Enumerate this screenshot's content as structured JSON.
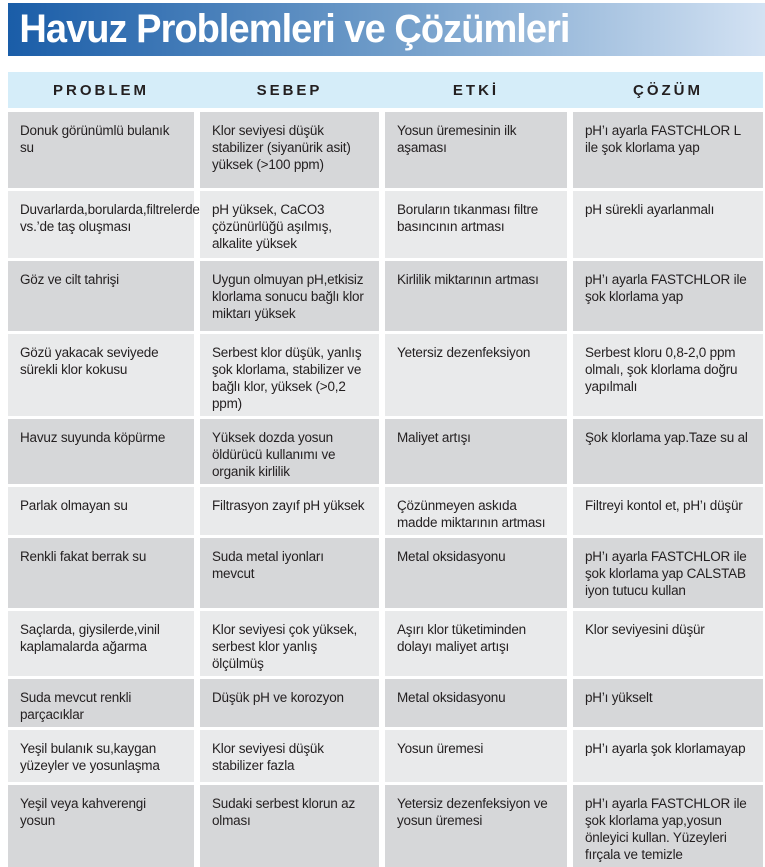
{
  "banner": {
    "title": "Havuz Problemleri ve Çözümleri"
  },
  "colors": {
    "banner_gradient_from": "#1a5da8",
    "banner_gradient_mid": "#6f9cc9",
    "banner_gradient_to": "#d3e2f3",
    "header_bg": "#d5edf9",
    "row_bg_dark": "#d6d7d9",
    "row_bg_light": "#e9eaeb",
    "title_color": "#ffffff",
    "text_color": "#231f20"
  },
  "table": {
    "headers": [
      "PROBLEM",
      "SEBEP",
      "ETKİ",
      "ÇÖZÜM"
    ],
    "rows": [
      {
        "problem": "Donuk görünümlü bulanık su",
        "sebep": "Klor seviyesi düşük stabilizer (siyanürik asit) yüksek (>100 ppm)",
        "etki": "Yosun üremesinin ilk aşaması",
        "cozum": "pH’ı ayarla FASTCHLOR L ile şok klorlama yap"
      },
      {
        "problem": "Duvarlarda,borularda,filtrelerde, vs.’de taş oluşması",
        "sebep": "pH yüksek, CaCO3 çözünürlüğü aşılmış, alkalite yüksek",
        "etki": "Boruların tıkanması filtre basıncının artması",
        "cozum": "pH sürekli ayarlanmalı"
      },
      {
        "problem": "Göz ve cilt tahrişi",
        "sebep": "Uygun olmuyan pH,etkisiz klorlama sonucu bağlı klor miktarı yüksek",
        "etki": "Kirlilik miktarının artması",
        "cozum": "pH’ı ayarla FASTCHLOR ile şok klorlama yap"
      },
      {
        "problem": "Gözü yakacak seviyede sürekli klor kokusu",
        "sebep": "Serbest klor düşük, yanlış şok klorlama, stabilizer ve bağlı klor, yüksek (>0,2 ppm)",
        "etki": "Yetersiz dezenfeksiyon",
        "cozum": "Serbest kloru 0,8-2,0 ppm olmalı, şok klorlama doğru yapılmalı"
      },
      {
        "problem": "Havuz suyunda köpürme",
        "sebep": "Yüksek dozda yosun öldürücü kullanımı ve organik kirlilik",
        "etki": "Maliyet artışı",
        "cozum": "Şok klorlama yap.Taze su al"
      },
      {
        "problem": "Parlak olmayan su",
        "sebep": "Filtrasyon zayıf pH yüksek",
        "etki": "Çözünmeyen askıda madde miktarının artması",
        "cozum": "Filtreyi kontol et, pH’ı düşür"
      },
      {
        "problem": "Renkli fakat berrak su",
        "sebep": "Suda metal iyonları mevcut",
        "etki": "Metal oksidasyonu",
        "cozum": "pH’ı ayarla FASTCHLOR ile şok klorlama yap CALSTAB iyon tutucu kullan"
      },
      {
        "problem": "Saçlarda, giysilerde,vinil kaplamalarda ağarma",
        "sebep": "Klor seviyesi çok yüksek, serbest klor yanlış ölçülmüş",
        "etki": "Aşırı klor tüketiminden dolayı maliyet artışı",
        "cozum": "Klor seviyesini düşür"
      },
      {
        "problem": "Suda mevcut renkli parçacıklar",
        "sebep": "Düşük pH ve korozyon",
        "etki": "Metal oksidasyonu",
        "cozum": "pH’ı yükselt"
      },
      {
        "problem": "Yeşil bulanık su,kaygan yüzeyler ve yosunlaşma",
        "sebep": "Klor seviyesi düşük stabilizer fazla",
        "etki": "Yosun üremesi",
        "cozum": "pH’ı ayarla şok klorlamayap"
      },
      {
        "problem": "Yeşil veya kahverengi yosun",
        "sebep": "Sudaki serbest klorun az olması",
        "etki": "Yetersiz dezenfeksiyon ve yosun üremesi",
        "cozum": "pH’ı ayarla FASTCHLOR ile şok klorlama yap,yosun önleyici kullan. Yüzeyleri fırçala ve temizle"
      }
    ]
  }
}
